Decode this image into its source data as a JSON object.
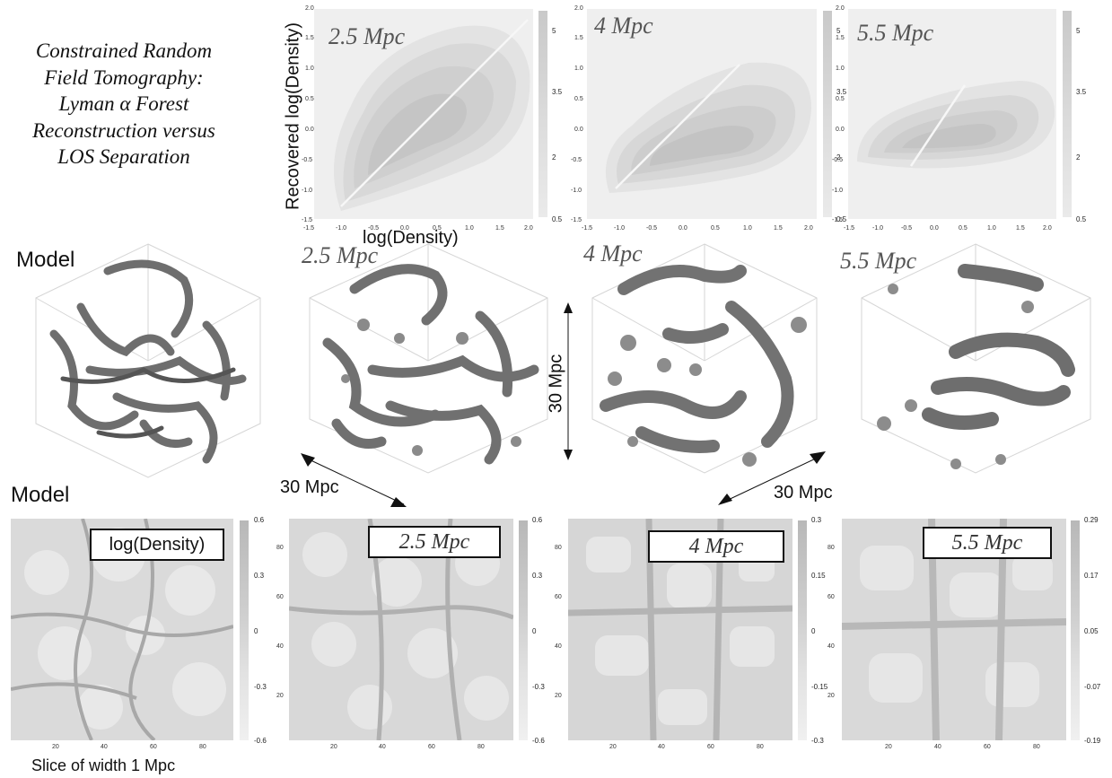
{
  "title_lines": [
    "Constrained Random",
    "Field Tomography:",
    "Lyman α Forest",
    "Reconstruction versus",
    "LOS Separation"
  ],
  "scatter": {
    "xlabel": "log(Density)",
    "ylabel": "Recovered log(Density)",
    "x_ticks": [
      "-1.5",
      "-1.0",
      "-0.5",
      "0.0",
      "0.5",
      "1.0",
      "1.5",
      "2.0"
    ],
    "y_ticks": [
      "2.0",
      "1.5",
      "1.0",
      "0.5",
      "0.0",
      "-0.5",
      "-1.0",
      "-1.5"
    ],
    "cbar_ticks": [
      "5",
      "3.5",
      "2",
      "0.5"
    ],
    "panels": [
      {
        "label": "2.5 Mpc"
      },
      {
        "label": "4 Mpc"
      },
      {
        "label": "5.5 Mpc"
      }
    ]
  },
  "volumes": {
    "row_label": "Model",
    "labels": [
      "2.5 Mpc",
      "4 Mpc",
      "5.5 Mpc"
    ],
    "scale_left": "30 Mpc",
    "scale_vertical": "30 Mpc",
    "scale_right": "30 Mpc"
  },
  "slices": {
    "row_label": "Model",
    "footer": "Slice of width 1 Mpc",
    "x_ticks": [
      "20",
      "40",
      "60",
      "80"
    ],
    "y_ticks": [
      "80",
      "60",
      "40",
      "20"
    ],
    "panels": [
      {
        "label": "log(Density)",
        "cbar_ticks": [
          "0.6",
          "0.3",
          "0",
          "-0.3",
          "-0.6"
        ]
      },
      {
        "label": "2.5 Mpc",
        "cbar_ticks": [
          "0.6",
          "0.3",
          "0",
          "-0.3",
          "-0.6"
        ]
      },
      {
        "label": "4 Mpc",
        "cbar_ticks": [
          "0.3",
          "0.15",
          "0",
          "-0.15",
          "-0.3"
        ]
      },
      {
        "label": "5.5 Mpc",
        "cbar_ticks": [
          "0.29",
          "0.17",
          "0.05",
          "-0.07",
          "-0.19"
        ]
      }
    ]
  }
}
